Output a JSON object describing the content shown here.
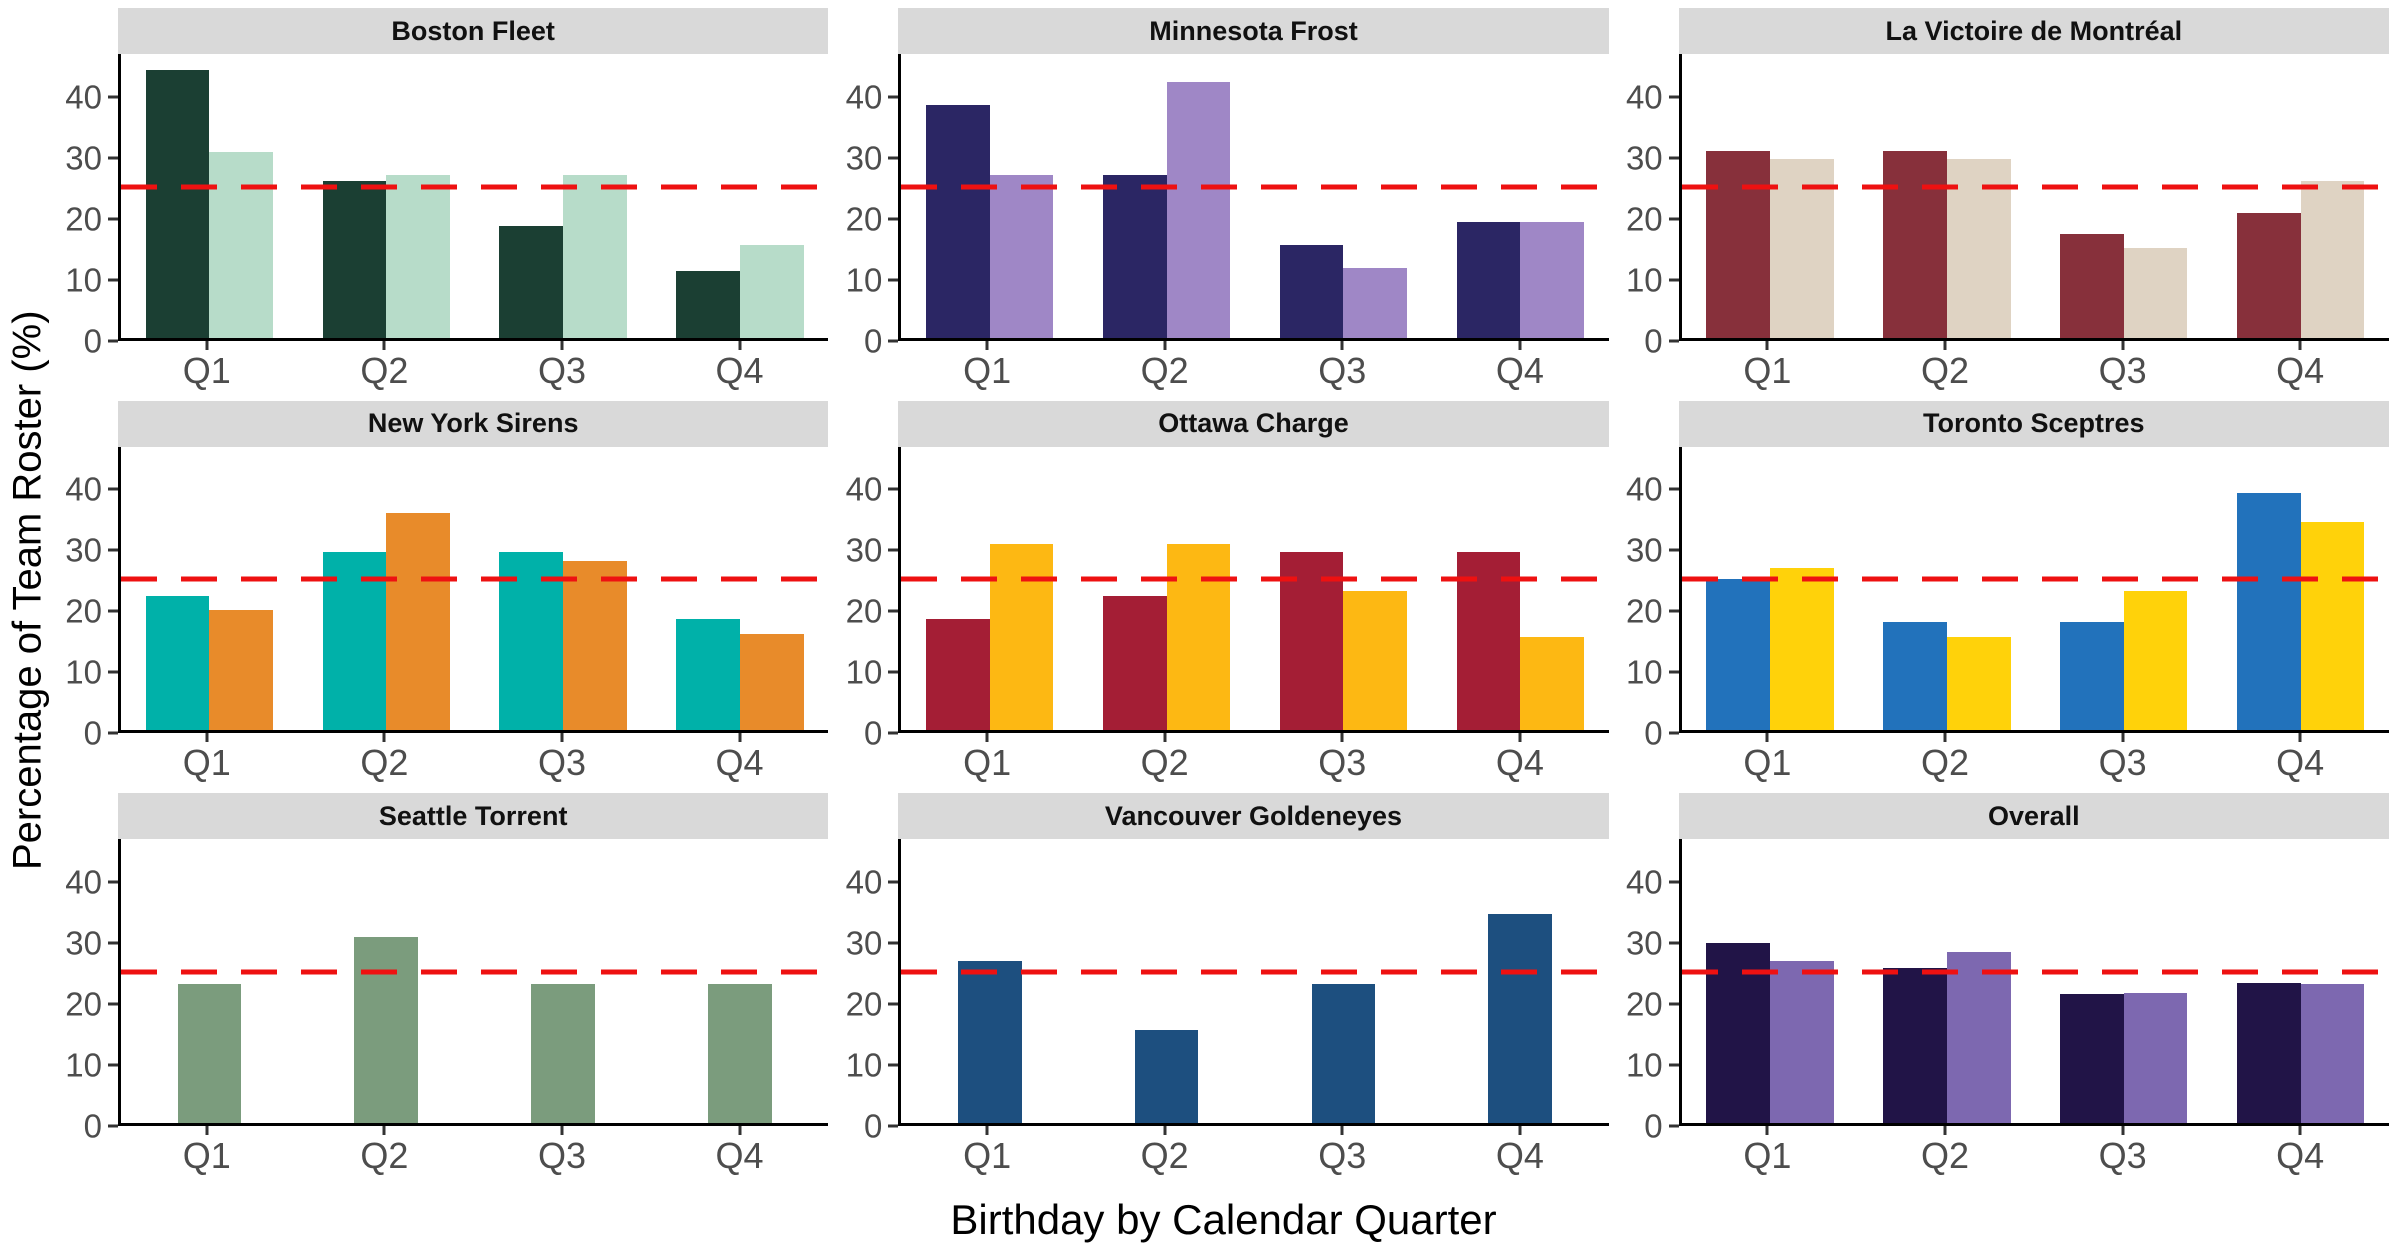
{
  "figure": {
    "y_axis_title": "Percentage of Team Roster (%)",
    "x_axis_title": "Birthday by Calendar Quarter"
  },
  "style": {
    "strip_bg": "#D9D9D9",
    "axis_text_color": "#4D4D4D",
    "axis_line_color": "#000000"
  },
  "chart_data": {
    "type": "bar",
    "layout": "3x3-facet-grid",
    "categories": [
      "Q1",
      "Q2",
      "Q3",
      "Q4"
    ],
    "yticks": [
      0,
      10,
      20,
      30,
      40
    ],
    "ylim": [
      0,
      47
    ],
    "grid": "off",
    "legend": "none",
    "reference_line": {
      "value": 25,
      "color": "#EE1111",
      "style": "dashed"
    },
    "facets": [
      {
        "title": "Boston Fleet",
        "colors": [
          "#1B3F33",
          "#B7DCC9"
        ],
        "series": [
          {
            "values": [
              44.4,
              25.9,
              18.5,
              11.1
            ]
          },
          {
            "values": [
              30.8,
              26.9,
              26.9,
              15.4
            ]
          }
        ]
      },
      {
        "title": "Minnesota Frost",
        "colors": [
          "#2B2664",
          "#9F87C6"
        ],
        "series": [
          {
            "values": [
              38.5,
              26.9,
              15.4,
              19.2
            ]
          },
          {
            "values": [
              26.9,
              42.3,
              11.5,
              19.2
            ]
          }
        ]
      },
      {
        "title": "La Victoire de Montréal",
        "colors": [
          "#87303B",
          "#DFD3C3"
        ],
        "series": [
          {
            "values": [
              31.0,
              31.0,
              17.2,
              20.7
            ]
          },
          {
            "values": [
              29.6,
              29.6,
              14.8,
              25.9
            ]
          }
        ]
      },
      {
        "title": "New York Sirens",
        "colors": [
          "#00B1A9",
          "#E88B2A"
        ],
        "series": [
          {
            "values": [
              22.2,
              29.6,
              29.6,
              18.5
            ]
          },
          {
            "values": [
              20.0,
              36.0,
              28.0,
              16.0
            ]
          }
        ]
      },
      {
        "title": "Ottawa Charge",
        "colors": [
          "#A41E35",
          "#FDB813"
        ],
        "series": [
          {
            "values": [
              18.5,
              22.2,
              29.6,
              29.6
            ]
          },
          {
            "values": [
              30.8,
              30.8,
              23.1,
              15.4
            ]
          }
        ]
      },
      {
        "title": "Toronto Sceptres",
        "colors": [
          "#2272BB",
          "#FFD20A"
        ],
        "series": [
          {
            "values": [
              25.0,
              17.9,
              17.9,
              39.3
            ]
          },
          {
            "values": [
              26.9,
              15.4,
              23.1,
              34.6
            ]
          }
        ]
      },
      {
        "title": "Seattle Torrent",
        "colors": [
          "#7B9C7D"
        ],
        "series": [
          {
            "values": [
              23.1,
              30.8,
              23.1,
              23.1
            ]
          }
        ]
      },
      {
        "title": "Vancouver Goldeneyes",
        "colors": [
          "#1D4F7F"
        ],
        "series": [
          {
            "values": [
              26.9,
              15.4,
              23.1,
              34.6
            ]
          }
        ]
      },
      {
        "title": "Overall",
        "colors": [
          "#211447",
          "#7D68B0"
        ],
        "series": [
          {
            "values": [
              29.9,
              25.6,
              21.3,
              23.2
            ]
          },
          {
            "values": [
              26.9,
              28.4,
              21.6,
              23.1
            ]
          }
        ]
      }
    ]
  }
}
